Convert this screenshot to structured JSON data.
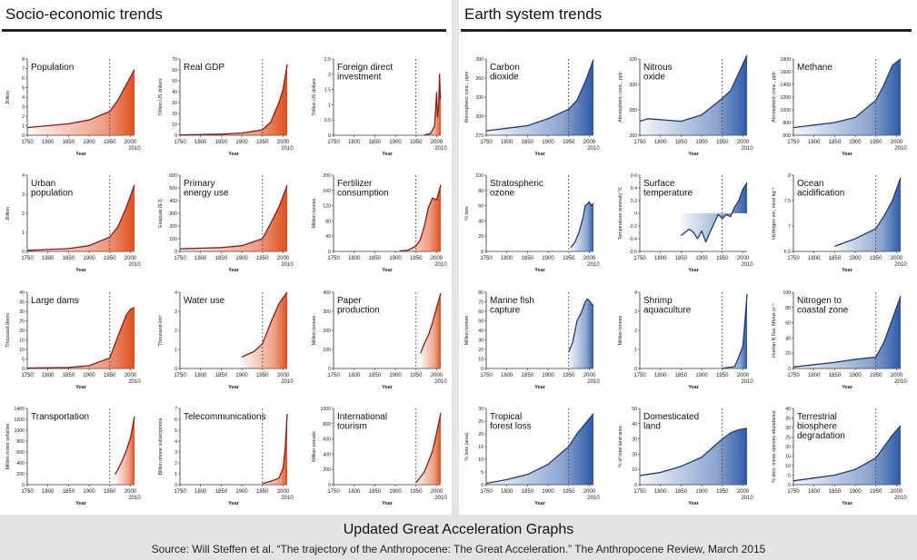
{
  "left_panel": {
    "title": "Socio-economic trends"
  },
  "right_panel": {
    "title": "Earth system trends"
  },
  "footer": {
    "title": "Updated Great Acceleration Graphs",
    "source": "Source: Will Steffen et al. “The trajectory of the Anthropocene: The Great Acceleration.” The Anthropocene Review, March 2015"
  },
  "colors": {
    "socio_line": "#8b1a1a",
    "socio_fill": "#e0501e",
    "earth_line": "#1f3a73",
    "earth_fill": "#2c5aa8",
    "marker": "#444444"
  },
  "chart_data": [
    {
      "id": "population",
      "panel": "socio",
      "type": "area",
      "title": [
        "Population"
      ],
      "ylabel": "Billion",
      "xlabel": "Year",
      "xlim": [
        1750,
        2010
      ],
      "ylim": [
        0,
        8
      ],
      "yticks": [
        0,
        1,
        2,
        3,
        4,
        5,
        6,
        7,
        8
      ],
      "xticks": [
        1750,
        1800,
        1850,
        1900,
        1950,
        2000
      ],
      "x": [
        1750,
        1800,
        1850,
        1900,
        1950,
        1970,
        1990,
        2010
      ],
      "y": [
        0.8,
        1.0,
        1.2,
        1.6,
        2.5,
        3.7,
        5.3,
        6.9
      ]
    },
    {
      "id": "real-gdp",
      "panel": "socio",
      "type": "area",
      "title": [
        "Real GDP"
      ],
      "ylabel": "Trillion US dollars",
      "xlabel": "Year",
      "xlim": [
        1750,
        2010
      ],
      "ylim": [
        0,
        70
      ],
      "yticks": [
        0,
        10,
        20,
        30,
        40,
        50,
        60,
        70
      ],
      "xticks": [
        1750,
        1800,
        1850,
        1900,
        1950,
        2000
      ],
      "x": [
        1750,
        1850,
        1900,
        1950,
        1970,
        1990,
        2000,
        2010
      ],
      "y": [
        0.3,
        1,
        2,
        5,
        12,
        30,
        42,
        65
      ]
    },
    {
      "id": "fdi",
      "panel": "socio",
      "type": "area",
      "title": [
        "Foreign direct",
        "investment"
      ],
      "ylabel": "Trillion US dollars",
      "xlabel": "Year",
      "xlim": [
        1750,
        2010
      ],
      "ylim": [
        0,
        2.5
      ],
      "yticks": [
        0,
        0.5,
        1.0,
        1.5,
        2.0,
        2.5
      ],
      "xticks": [
        1750,
        1800,
        1850,
        1900,
        1950,
        2000
      ],
      "x": [
        1970,
        1985,
        1995,
        2000,
        2002,
        2005,
        2007,
        2009,
        2010
      ],
      "y": [
        0.01,
        0.05,
        0.3,
        1.4,
        0.6,
        1.0,
        2.0,
        1.2,
        1.3
      ]
    },
    {
      "id": "urban-population",
      "panel": "socio",
      "type": "area",
      "title": [
        "Urban",
        "population"
      ],
      "ylabel": "Billion",
      "xlabel": "Year",
      "xlim": [
        1750,
        2010
      ],
      "ylim": [
        0,
        4
      ],
      "yticks": [
        0,
        1,
        2,
        3,
        4
      ],
      "xticks": [
        1750,
        1800,
        1850,
        1900,
        1950,
        2000
      ],
      "x": [
        1750,
        1800,
        1850,
        1900,
        1950,
        1970,
        1990,
        2010
      ],
      "y": [
        0.05,
        0.1,
        0.15,
        0.3,
        0.75,
        1.3,
        2.3,
        3.5
      ]
    },
    {
      "id": "primary-energy",
      "panel": "socio",
      "type": "area",
      "title": [
        "Primary",
        "energy use"
      ],
      "ylabel": "Exajoule (EJ)",
      "xlabel": "Year",
      "xlim": [
        1750,
        2010
      ],
      "ylim": [
        0,
        600
      ],
      "yticks": [
        0,
        100,
        200,
        300,
        400,
        500,
        600
      ],
      "xticks": [
        1750,
        1800,
        1850,
        1900,
        1950,
        2000
      ],
      "x": [
        1750,
        1850,
        1900,
        1950,
        1970,
        1990,
        2010
      ],
      "y": [
        20,
        30,
        45,
        100,
        220,
        350,
        520
      ]
    },
    {
      "id": "fertilizer",
      "panel": "socio",
      "type": "area",
      "title": [
        "Fertilizer",
        "consumption"
      ],
      "ylabel": "Million tonnes",
      "xlabel": "Year",
      "xlim": [
        1750,
        2010
      ],
      "ylim": [
        0,
        200
      ],
      "yticks": [
        0,
        40,
        80,
        120,
        160,
        200
      ],
      "xticks": [
        1750,
        1800,
        1850,
        1900,
        1950,
        2000
      ],
      "x": [
        1910,
        1930,
        1950,
        1960,
        1970,
        1980,
        1990,
        2000,
        2010
      ],
      "y": [
        1,
        3,
        14,
        30,
        65,
        115,
        140,
        135,
        175
      ]
    },
    {
      "id": "large-dams",
      "panel": "socio",
      "type": "area",
      "title": [
        "Large dams"
      ],
      "ylabel": "Thousand dams",
      "xlabel": "Year",
      "xlim": [
        1750,
        2010
      ],
      "ylim": [
        0,
        40
      ],
      "yticks": [
        0,
        5,
        10,
        15,
        20,
        25,
        30,
        35,
        40
      ],
      "xticks": [
        1750,
        1800,
        1850,
        1900,
        1950,
        2000
      ],
      "x": [
        1750,
        1850,
        1900,
        1950,
        1970,
        1990,
        2000,
        2010
      ],
      "y": [
        0.2,
        0.5,
        1.5,
        5.5,
        17,
        28,
        31,
        32
      ]
    },
    {
      "id": "water-use",
      "panel": "socio",
      "type": "area",
      "title": [
        "Water use"
      ],
      "ylabel": "Thousand km³",
      "xlabel": "Year",
      "xlim": [
        1750,
        2010
      ],
      "ylim": [
        0,
        4
      ],
      "yticks": [
        0,
        1,
        2,
        3,
        4
      ],
      "xticks": [
        1750,
        1800,
        1850,
        1900,
        1950,
        2000
      ],
      "x": [
        1900,
        1930,
        1950,
        1970,
        1990,
        2010
      ],
      "y": [
        0.6,
        0.9,
        1.3,
        2.4,
        3.4,
        4.0
      ]
    },
    {
      "id": "paper-production",
      "panel": "socio",
      "type": "area",
      "title": [
        "Paper",
        "production"
      ],
      "ylabel": "Million tonnes",
      "xlabel": "Year",
      "xlim": [
        1750,
        2010
      ],
      "ylim": [
        0,
        400
      ],
      "yticks": [
        0,
        100,
        200,
        300,
        400
      ],
      "xticks": [
        1750,
        1800,
        1850,
        1900,
        1950,
        2000
      ],
      "x": [
        1961,
        1970,
        1980,
        1990,
        2000,
        2010
      ],
      "y": [
        80,
        130,
        175,
        240,
        320,
        395
      ]
    },
    {
      "id": "transportation",
      "panel": "socio",
      "type": "area",
      "title": [
        "Transportation"
      ],
      "ylabel": "Million motor vehicles",
      "xlabel": "Year",
      "xlim": [
        1750,
        2010
      ],
      "ylim": [
        0,
        1400
      ],
      "yticks": [
        0,
        200,
        400,
        600,
        800,
        1000,
        1200,
        1400
      ],
      "xticks": [
        1750,
        1800,
        1850,
        1900,
        1950,
        2000
      ],
      "x": [
        1963,
        1970,
        1980,
        1990,
        2000,
        2010
      ],
      "y": [
        190,
        280,
        440,
        620,
        850,
        1250
      ]
    },
    {
      "id": "telecommunications",
      "panel": "socio",
      "type": "area",
      "title": [
        "Telecommunications"
      ],
      "ylabel": "Billion phone subscriptions",
      "xlabel": "Year",
      "xlim": [
        1750,
        2010
      ],
      "ylim": [
        0,
        7
      ],
      "yticks": [
        0,
        1,
        2,
        3,
        4,
        5,
        6,
        7
      ],
      "xticks": [
        1750,
        1800,
        1850,
        1900,
        1950,
        2000
      ],
      "x": [
        1950,
        1970,
        1990,
        2000,
        2005,
        2010
      ],
      "y": [
        0.1,
        0.3,
        0.6,
        1.5,
        3.2,
        6.5
      ]
    },
    {
      "id": "tourism",
      "panel": "socio",
      "type": "area",
      "title": [
        "International",
        "tourism"
      ],
      "ylabel": "Million arrivals",
      "xlabel": "Year",
      "xlim": [
        1750,
        2010
      ],
      "ylim": [
        0,
        1000
      ],
      "yticks": [
        0,
        200,
        400,
        600,
        800,
        1000
      ],
      "xticks": [
        1750,
        1800,
        1850,
        1900,
        1950,
        2000
      ],
      "x": [
        1950,
        1970,
        1990,
        2000,
        2010
      ],
      "y": [
        25,
        165,
        440,
        680,
        940
      ]
    },
    {
      "id": "carbon-dioxide",
      "panel": "earth",
      "type": "area",
      "title": [
        "Carbon",
        "dioxide"
      ],
      "ylabel": "Atmospheric conc., ppm",
      "xlabel": "Year",
      "xlim": [
        1750,
        2010
      ],
      "ylim": [
        270,
        390
      ],
      "yticks": [
        270,
        300,
        330,
        360,
        390
      ],
      "xticks": [
        1750,
        1800,
        1850,
        1900,
        1950,
        2000
      ],
      "x": [
        1750,
        1800,
        1850,
        1900,
        1950,
        1970,
        1990,
        2010
      ],
      "y": [
        277,
        281,
        285,
        296,
        311,
        325,
        354,
        389
      ]
    },
    {
      "id": "nitrous-oxide",
      "panel": "earth",
      "type": "area",
      "title": [
        "Nitrous",
        "oxide"
      ],
      "ylabel": "Atmospheric conc., ppb",
      "xlabel": "Year",
      "xlim": [
        1750,
        2010
      ],
      "ylim": [
        260,
        320
      ],
      "yticks": [
        260,
        280,
        300,
        320
      ],
      "xticks": [
        1750,
        1800,
        1850,
        1900,
        1950,
        2000
      ],
      "x": [
        1750,
        1770,
        1850,
        1900,
        1950,
        1970,
        1990,
        2010
      ],
      "y": [
        271,
        273,
        271,
        276,
        289,
        295,
        309,
        323
      ]
    },
    {
      "id": "methane",
      "panel": "earth",
      "type": "area",
      "title": [
        "Methane"
      ],
      "ylabel": "Atmospheric conc., ppb",
      "xlabel": "Year",
      "xlim": [
        1750,
        2010
      ],
      "ylim": [
        600,
        1800
      ],
      "yticks": [
        600,
        800,
        1000,
        1200,
        1400,
        1600,
        1800
      ],
      "xticks": [
        1750,
        1800,
        1850,
        1900,
        1950,
        2000
      ],
      "x": [
        1750,
        1800,
        1850,
        1900,
        1950,
        1970,
        1990,
        2000,
        2010
      ],
      "y": [
        720,
        760,
        800,
        880,
        1150,
        1400,
        1700,
        1750,
        1800
      ]
    },
    {
      "id": "ozone",
      "panel": "earth",
      "type": "area",
      "title": [
        "Stratospheric",
        "ozone"
      ],
      "ylabel": "% loss",
      "xlabel": "Year",
      "xlim": [
        1750,
        2010
      ],
      "ylim": [
        0,
        100
      ],
      "yticks": [
        0,
        20,
        40,
        60,
        80,
        100
      ],
      "xticks": [
        1750,
        1800,
        1850,
        1900,
        1950,
        2000
      ],
      "x": [
        1955,
        1965,
        1975,
        1985,
        1990,
        1995,
        2000,
        2005,
        2010
      ],
      "y": [
        5,
        12,
        25,
        45,
        60,
        62,
        65,
        60,
        63
      ]
    },
    {
      "id": "surface-temperature",
      "panel": "earth",
      "type": "area",
      "title": [
        "Surface",
        "temperature"
      ],
      "ylabel": "Temperature anomaly °C",
      "xlabel": "Year",
      "xlim": [
        1750,
        2010
      ],
      "ylim": [
        -0.6,
        0.6
      ],
      "yticks": [
        -0.6,
        -0.4,
        -0.2,
        0,
        0.2,
        0.4,
        0.6
      ],
      "xticks": [
        1750,
        1800,
        1850,
        1900,
        1950,
        2000
      ],
      "x": [
        1850,
        1870,
        1880,
        1890,
        1900,
        1910,
        1920,
        1940,
        1950,
        1960,
        1970,
        1980,
        1990,
        2000,
        2010
      ],
      "y": [
        -0.35,
        -0.25,
        -0.3,
        -0.4,
        -0.28,
        -0.45,
        -0.3,
        -0.02,
        -0.08,
        -0.02,
        -0.05,
        0.1,
        0.2,
        0.38,
        0.48
      ]
    },
    {
      "id": "ocean-acidification",
      "panel": "earth",
      "type": "area",
      "title": [
        "Ocean",
        "acidification"
      ],
      "ylabel": "Hydrogen ion, nmol kg⁻¹",
      "xlabel": "Year",
      "xlim": [
        1750,
        2010
      ],
      "ylim": [
        6.5,
        8.0
      ],
      "yticks": [
        6.5,
        7.0,
        7.5,
        8.0
      ],
      "xticks": [
        1750,
        1800,
        1850,
        1900,
        1950,
        2000
      ],
      "x": [
        1850,
        1900,
        1950,
        1970,
        1990,
        2010
      ],
      "y": [
        6.6,
        6.75,
        6.95,
        7.2,
        7.5,
        7.95
      ]
    },
    {
      "id": "marine-fish",
      "panel": "earth",
      "type": "area",
      "title": [
        "Marine fish",
        "capture"
      ],
      "ylabel": "Million tonnes",
      "xlabel": "Year",
      "xlim": [
        1750,
        2010
      ],
      "ylim": [
        0,
        80
      ],
      "yticks": [
        0,
        10,
        20,
        30,
        40,
        50,
        60,
        70,
        80
      ],
      "xticks": [
        1750,
        1800,
        1850,
        1900,
        1950,
        2000
      ],
      "x": [
        1950,
        1960,
        1970,
        1980,
        1990,
        1995,
        2000,
        2005,
        2010
      ],
      "y": [
        17,
        28,
        50,
        58,
        70,
        73,
        71,
        68,
        66
      ]
    },
    {
      "id": "shrimp-aquaculture",
      "panel": "earth",
      "type": "area",
      "title": [
        "Shrimp",
        "aquaculture"
      ],
      "ylabel": "Million tonnes",
      "xlabel": "Year",
      "xlim": [
        1750,
        2010
      ],
      "ylim": [
        0,
        4
      ],
      "yticks": [
        0,
        1,
        2,
        3,
        4
      ],
      "xticks": [
        1750,
        1800,
        1850,
        1900,
        1950,
        2000
      ],
      "x": [
        1950,
        1980,
        1990,
        2000,
        2005,
        2010
      ],
      "y": [
        0.01,
        0.1,
        0.6,
        1.2,
        2.5,
        3.9
      ]
    },
    {
      "id": "nitrogen-coastal",
      "panel": "earth",
      "type": "area",
      "title": [
        "Nitrogen to",
        "coastal zone"
      ],
      "ylabel": "Human N flux, Mtons yr⁻¹",
      "xlabel": "Year",
      "xlim": [
        1750,
        2010
      ],
      "ylim": [
        0,
        100
      ],
      "yticks": [
        0,
        20,
        40,
        60,
        80,
        100
      ],
      "xticks": [
        1750,
        1800,
        1850,
        1900,
        1950,
        2000
      ],
      "x": [
        1750,
        1850,
        1900,
        1950,
        1970,
        1990,
        2010
      ],
      "y": [
        2,
        8,
        12,
        15,
        35,
        65,
        95
      ]
    },
    {
      "id": "forest-loss",
      "panel": "earth",
      "type": "area",
      "title": [
        "Tropical",
        "forest loss"
      ],
      "ylabel": "% loss (area)",
      "xlabel": "Year",
      "xlim": [
        1750,
        2010
      ],
      "ylim": [
        0,
        30
      ],
      "yticks": [
        0,
        5,
        10,
        15,
        20,
        25,
        30
      ],
      "xticks": [
        1750,
        1800,
        1850,
        1900,
        1950,
        2000
      ],
      "x": [
        1750,
        1800,
        1850,
        1900,
        1950,
        1970,
        1990,
        2010
      ],
      "y": [
        0.5,
        2,
        4,
        8,
        15,
        20,
        24,
        28
      ]
    },
    {
      "id": "domesticated-land",
      "panel": "earth",
      "type": "area",
      "title": [
        "Domesticated",
        "land"
      ],
      "ylabel": "% of total land area",
      "xlabel": "Year",
      "xlim": [
        1750,
        2010
      ],
      "ylim": [
        0,
        50
      ],
      "yticks": [
        0,
        10,
        20,
        30,
        40,
        50
      ],
      "xticks": [
        1750,
        1800,
        1850,
        1900,
        1950,
        2000
      ],
      "x": [
        1750,
        1800,
        1850,
        1900,
        1950,
        1970,
        1990,
        2010
      ],
      "y": [
        6,
        8,
        12,
        18,
        30,
        34,
        36,
        37
      ]
    },
    {
      "id": "biosphere-degradation",
      "panel": "earth",
      "type": "area",
      "title": [
        "Terrestrial",
        "biosphere",
        "degradation"
      ],
      "ylabel": "% decr. mean species abundance",
      "xlabel": "Year",
      "xlim": [
        1750,
        2010
      ],
      "ylim": [
        0,
        40
      ],
      "yticks": [
        0,
        5,
        10,
        15,
        20,
        25,
        30,
        35,
        40
      ],
      "xticks": [
        1750,
        1800,
        1850,
        1900,
        1950,
        2000
      ],
      "x": [
        1750,
        1850,
        1900,
        1950,
        1970,
        1990,
        2010
      ],
      "y": [
        2,
        5,
        8,
        14,
        20,
        26,
        31
      ]
    }
  ]
}
